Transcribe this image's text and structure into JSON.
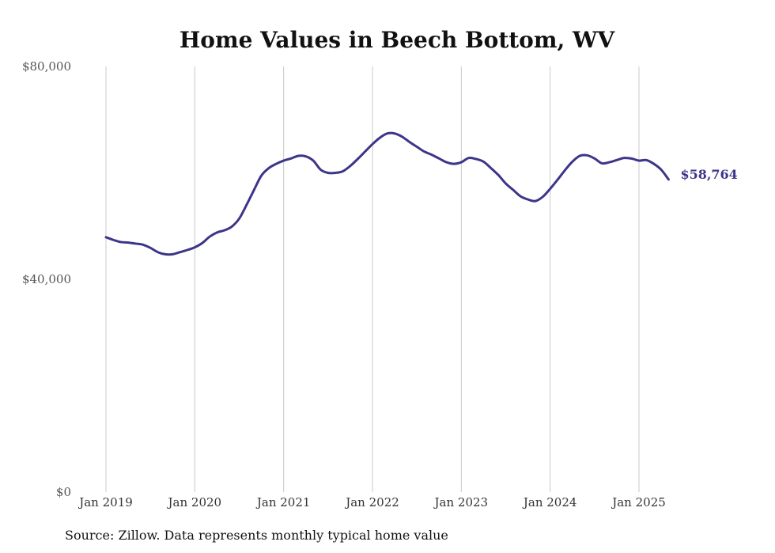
{
  "chart_data": {
    "type": "line",
    "title": "Home Values in Beech Bottom, WV",
    "xlabel": "",
    "ylabel": "",
    "ylim": [
      0,
      80000
    ],
    "xlim": [
      "2019-01",
      "2025-08"
    ],
    "grid": "vertical",
    "y_ticks": [
      {
        "value": 80000,
        "label": "$80,000"
      },
      {
        "value": 40000,
        "label": "$40,000"
      },
      {
        "value": 0,
        "label": "$0"
      }
    ],
    "x_ticks": [
      {
        "value": "2019-01",
        "label": "Jan 2019"
      },
      {
        "value": "2020-01",
        "label": "Jan 2020"
      },
      {
        "value": "2021-01",
        "label": "Jan 2021"
      },
      {
        "value": "2022-01",
        "label": "Jan 2022"
      },
      {
        "value": "2023-01",
        "label": "Jan 2023"
      },
      {
        "value": "2024-01",
        "label": "Jan 2024"
      },
      {
        "value": "2025-01",
        "label": "Jan 2025"
      }
    ],
    "series": [
      {
        "color": "#3d3589",
        "end_label": "$58,764",
        "points": [
          {
            "x": "2019-01",
            "y": 47900
          },
          {
            "x": "2019-02",
            "y": 47400
          },
          {
            "x": "2019-03",
            "y": 47000
          },
          {
            "x": "2019-04",
            "y": 46900
          },
          {
            "x": "2019-05",
            "y": 46700
          },
          {
            "x": "2019-06",
            "y": 46500
          },
          {
            "x": "2019-07",
            "y": 45900
          },
          {
            "x": "2019-08",
            "y": 45100
          },
          {
            "x": "2019-09",
            "y": 44700
          },
          {
            "x": "2019-10",
            "y": 44700
          },
          {
            "x": "2019-11",
            "y": 45100
          },
          {
            "x": "2019-12",
            "y": 45500
          },
          {
            "x": "2020-01",
            "y": 46000
          },
          {
            "x": "2020-02",
            "y": 46800
          },
          {
            "x": "2020-03",
            "y": 48000
          },
          {
            "x": "2020-04",
            "y": 48800
          },
          {
            "x": "2020-05",
            "y": 49200
          },
          {
            "x": "2020-06",
            "y": 49900
          },
          {
            "x": "2020-07",
            "y": 51400
          },
          {
            "x": "2020-08",
            "y": 54000
          },
          {
            "x": "2020-09",
            "y": 56800
          },
          {
            "x": "2020-10",
            "y": 59500
          },
          {
            "x": "2020-11",
            "y": 60900
          },
          {
            "x": "2020-12",
            "y": 61700
          },
          {
            "x": "2021-01",
            "y": 62300
          },
          {
            "x": "2021-02",
            "y": 62700
          },
          {
            "x": "2021-03",
            "y": 63200
          },
          {
            "x": "2021-04",
            "y": 63100
          },
          {
            "x": "2021-05",
            "y": 62300
          },
          {
            "x": "2021-06",
            "y": 60600
          },
          {
            "x": "2021-07",
            "y": 60000
          },
          {
            "x": "2021-08",
            "y": 60000
          },
          {
            "x": "2021-09",
            "y": 60300
          },
          {
            "x": "2021-10",
            "y": 61300
          },
          {
            "x": "2021-11",
            "y": 62600
          },
          {
            "x": "2021-12",
            "y": 64000
          },
          {
            "x": "2022-01",
            "y": 65400
          },
          {
            "x": "2022-02",
            "y": 66600
          },
          {
            "x": "2022-03",
            "y": 67400
          },
          {
            "x": "2022-04",
            "y": 67400
          },
          {
            "x": "2022-05",
            "y": 66800
          },
          {
            "x": "2022-06",
            "y": 65800
          },
          {
            "x": "2022-07",
            "y": 64900
          },
          {
            "x": "2022-08",
            "y": 64000
          },
          {
            "x": "2022-09",
            "y": 63400
          },
          {
            "x": "2022-10",
            "y": 62700
          },
          {
            "x": "2022-11",
            "y": 62000
          },
          {
            "x": "2022-12",
            "y": 61700
          },
          {
            "x": "2023-01",
            "y": 62000
          },
          {
            "x": "2023-02",
            "y": 62800
          },
          {
            "x": "2023-03",
            "y": 62600
          },
          {
            "x": "2023-04",
            "y": 62100
          },
          {
            "x": "2023-05",
            "y": 60900
          },
          {
            "x": "2023-06",
            "y": 59600
          },
          {
            "x": "2023-07",
            "y": 58000
          },
          {
            "x": "2023-08",
            "y": 56800
          },
          {
            "x": "2023-09",
            "y": 55600
          },
          {
            "x": "2023-10",
            "y": 55000
          },
          {
            "x": "2023-11",
            "y": 54700
          },
          {
            "x": "2023-12",
            "y": 55500
          },
          {
            "x": "2024-01",
            "y": 57000
          },
          {
            "x": "2024-02",
            "y": 58700
          },
          {
            "x": "2024-03",
            "y": 60500
          },
          {
            "x": "2024-04",
            "y": 62100
          },
          {
            "x": "2024-05",
            "y": 63200
          },
          {
            "x": "2024-06",
            "y": 63300
          },
          {
            "x": "2024-07",
            "y": 62700
          },
          {
            "x": "2024-08",
            "y": 61800
          },
          {
            "x": "2024-09",
            "y": 62000
          },
          {
            "x": "2024-10",
            "y": 62400
          },
          {
            "x": "2024-11",
            "y": 62800
          },
          {
            "x": "2024-12",
            "y": 62700
          },
          {
            "x": "2025-01",
            "y": 62300
          },
          {
            "x": "2025-02",
            "y": 62400
          },
          {
            "x": "2025-03",
            "y": 61700
          },
          {
            "x": "2025-04",
            "y": 60600
          },
          {
            "x": "2025-05",
            "y": 58764
          }
        ]
      }
    ]
  },
  "source_note": "Source: Zillow. Data represents monthly typical home value"
}
